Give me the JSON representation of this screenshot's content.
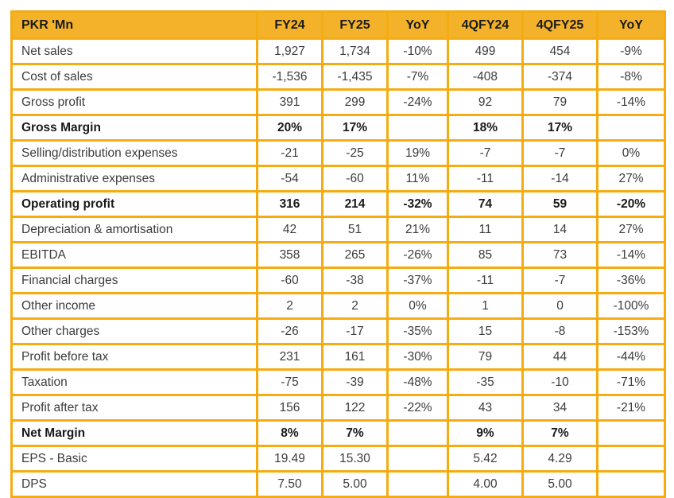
{
  "table": {
    "title_cell": "PKR 'Mn",
    "columns": [
      "PKR 'Mn",
      "FY24",
      "FY25",
      "YoY",
      "4QFY24",
      "4QFY25",
      "YoY"
    ],
    "rows": [
      {
        "label": "Net sales",
        "bold": false,
        "values": [
          "1,927",
          "1,734",
          "-10%",
          "499",
          "454",
          "-9%"
        ]
      },
      {
        "label": "Cost of sales",
        "bold": false,
        "values": [
          "-1,536",
          "-1,435",
          "-7%",
          "-408",
          "-374",
          "-8%"
        ]
      },
      {
        "label": "Gross profit",
        "bold": false,
        "values": [
          "391",
          "299",
          "-24%",
          "92",
          "79",
          "-14%"
        ]
      },
      {
        "label": "Gross Margin",
        "bold": true,
        "values": [
          "20%",
          "17%",
          "",
          "18%",
          "17%",
          ""
        ]
      },
      {
        "label": "Selling/distribution expenses",
        "bold": false,
        "values": [
          "-21",
          "-25",
          "19%",
          "-7",
          "-7",
          "0%"
        ]
      },
      {
        "label": "Administrative expenses",
        "bold": false,
        "values": [
          "-54",
          "-60",
          "11%",
          "-11",
          "-14",
          "27%"
        ]
      },
      {
        "label": "Operating profit",
        "bold": true,
        "values": [
          "316",
          "214",
          "-32%",
          "74",
          "59",
          "-20%"
        ]
      },
      {
        "label": "Depreciation & amortisation",
        "bold": false,
        "values": [
          "42",
          "51",
          "21%",
          "11",
          "14",
          "27%"
        ]
      },
      {
        "label": "EBITDA",
        "bold": false,
        "values": [
          "358",
          "265",
          "-26%",
          "85",
          "73",
          "-14%"
        ]
      },
      {
        "label": "Financial charges",
        "bold": false,
        "values": [
          "-60",
          "-38",
          "-37%",
          "-11",
          "-7",
          "-36%"
        ]
      },
      {
        "label": "Other income",
        "bold": false,
        "values": [
          "2",
          "2",
          "0%",
          "1",
          "0",
          "-100%"
        ]
      },
      {
        "label": "Other charges",
        "bold": false,
        "values": [
          "-26",
          "-17",
          "-35%",
          "15",
          "-8",
          "-153%"
        ]
      },
      {
        "label": "Profit before tax",
        "bold": false,
        "values": [
          "231",
          "161",
          "-30%",
          "79",
          "44",
          "-44%"
        ]
      },
      {
        "label": "Taxation",
        "bold": false,
        "values": [
          "-75",
          "-39",
          "-48%",
          "-35",
          "-10",
          "-71%"
        ]
      },
      {
        "label": "Profit after tax",
        "bold": false,
        "values": [
          "156",
          "122",
          "-22%",
          "43",
          "34",
          "-21%"
        ]
      },
      {
        "label": "Net Margin",
        "bold": true,
        "values": [
          "8%",
          "7%",
          "",
          "9%",
          "7%",
          ""
        ]
      },
      {
        "label": "EPS - Basic",
        "bold": false,
        "values": [
          "19.49",
          "15.30",
          "",
          "5.42",
          "4.29",
          ""
        ]
      },
      {
        "label": "DPS",
        "bold": false,
        "values": [
          "7.50",
          "5.00",
          "",
          "4.00",
          "5.00",
          ""
        ]
      }
    ],
    "colors": {
      "header_bg": "#F3B229",
      "border": "#F5AC13",
      "body_text": "#3C3C3C",
      "header_text": "#1A1A1A",
      "bold_text": "#1A1A1A",
      "background": "#FFFFFF"
    }
  }
}
